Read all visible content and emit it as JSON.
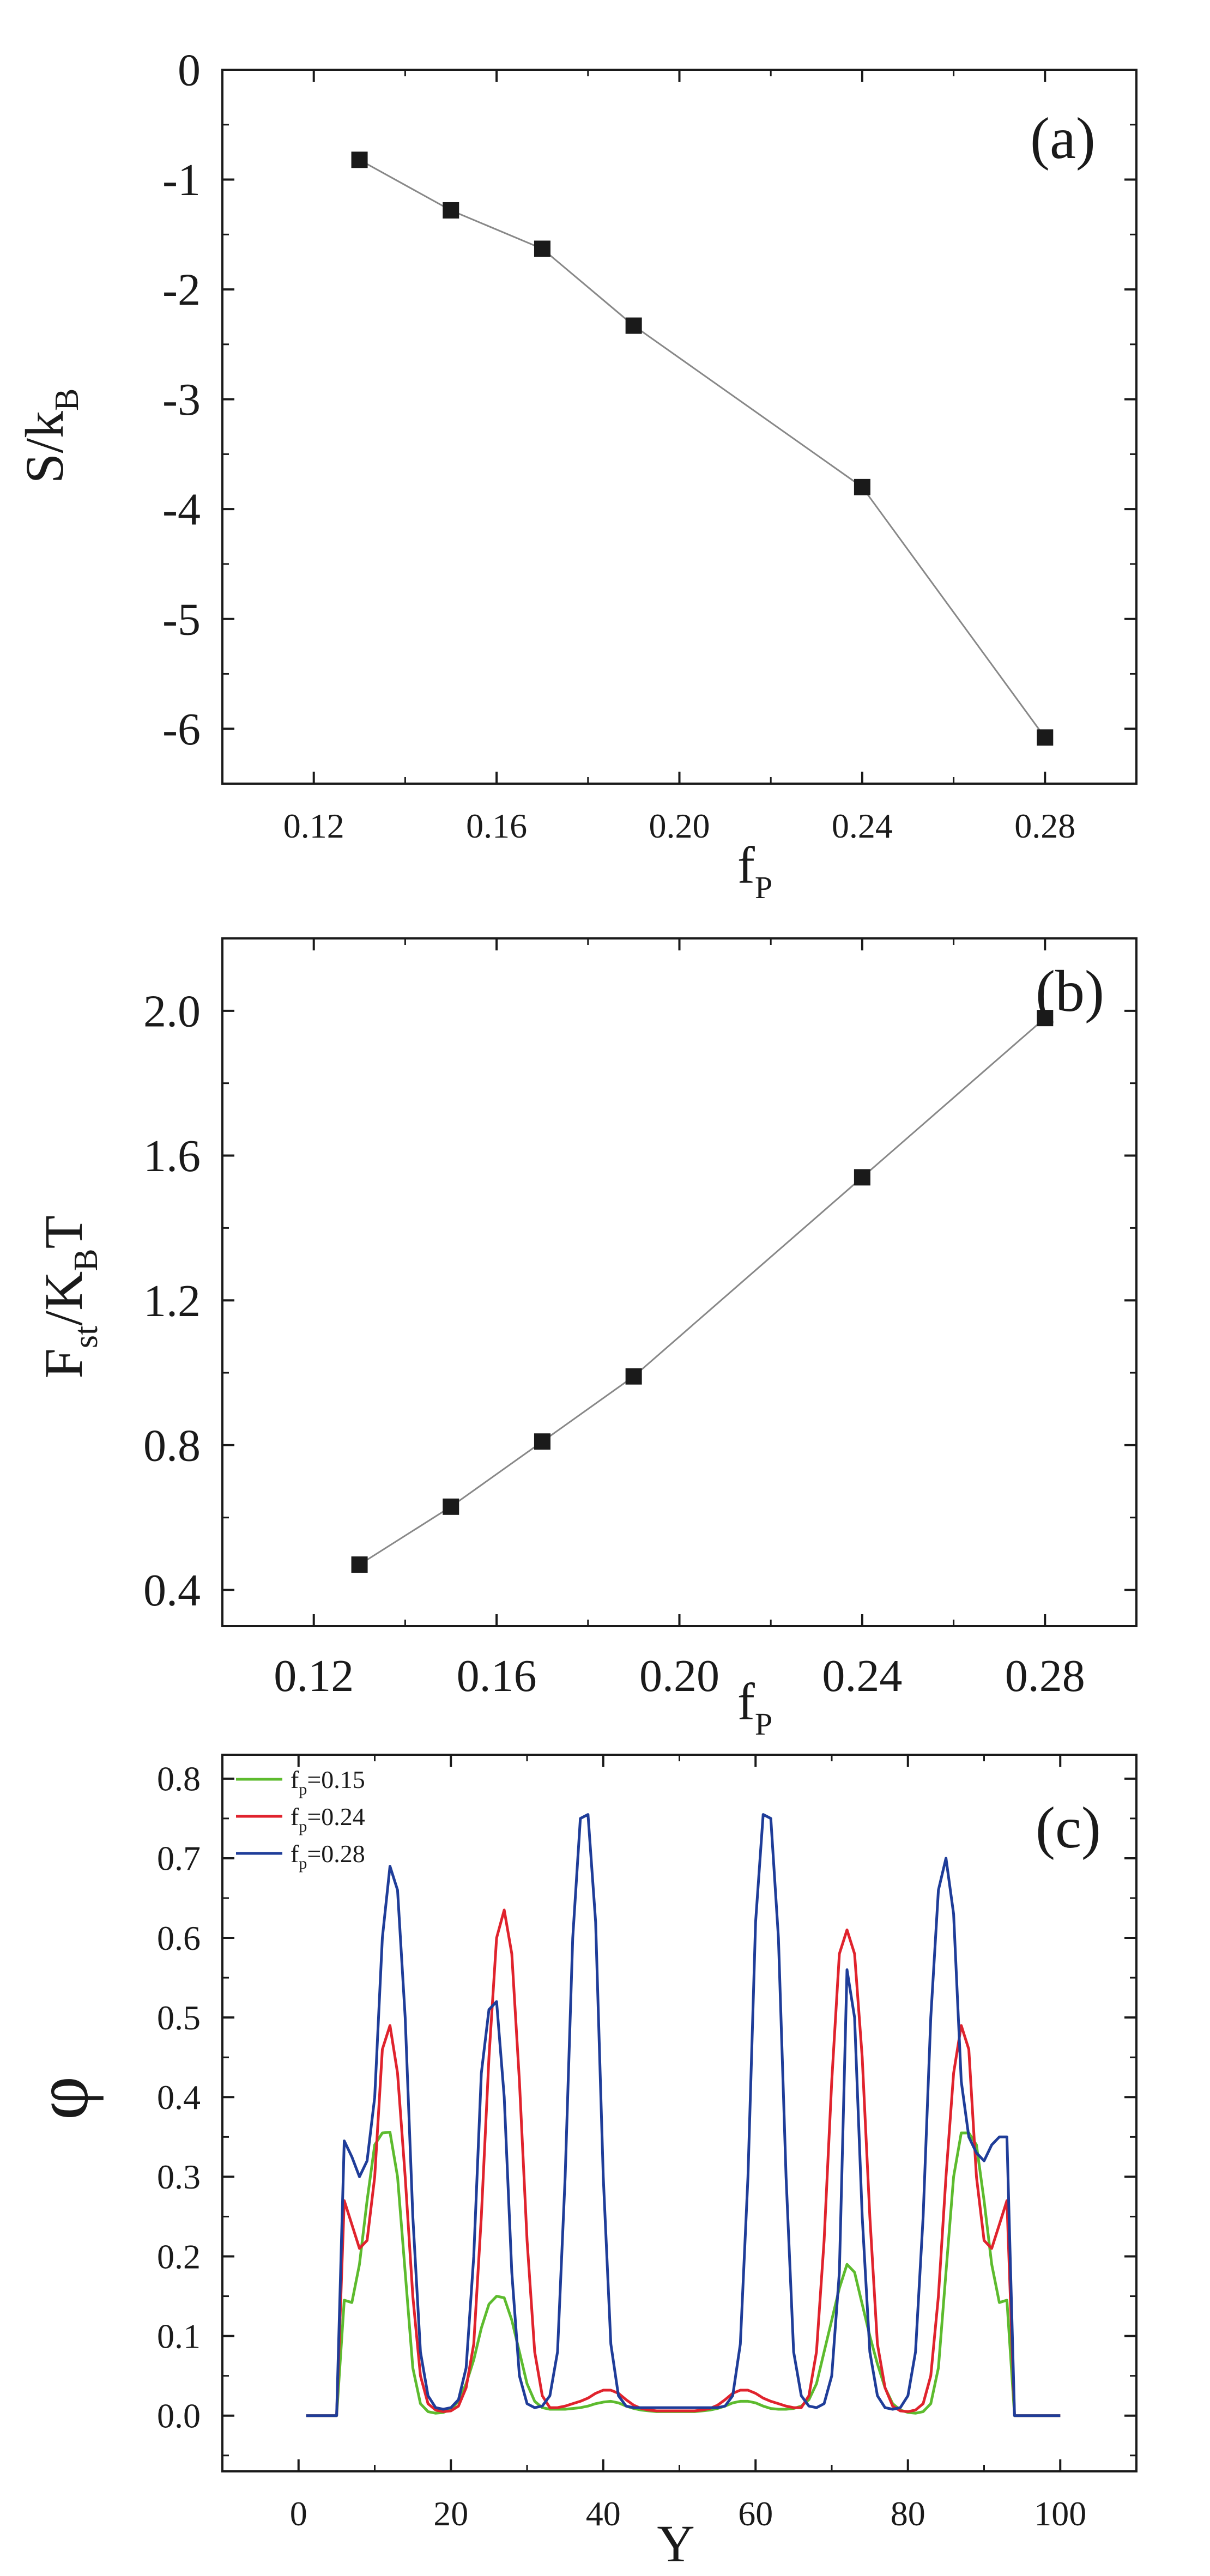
{
  "chart_data": [
    {
      "id": "a",
      "type": "line",
      "panel_label": "(a)",
      "ylabel": {
        "main": "S/k",
        "sub": "B"
      },
      "xlabel": {
        "main": "f",
        "sub": "P"
      },
      "xlim": [
        0.1,
        0.3
      ],
      "ylim": [
        -6.5,
        0
      ],
      "xticks": [
        0.12,
        0.16,
        0.2,
        0.24,
        0.28
      ],
      "xtick_labels": [
        "0.12",
        "0.16",
        "0.20",
        "0.24",
        "0.28"
      ],
      "yticks": [
        0,
        -1,
        -2,
        -3,
        -4,
        -5,
        -6
      ],
      "ytick_labels": [
        "0",
        "-1",
        "-2",
        "-3",
        "-4",
        "-5",
        "-6"
      ],
      "x": [
        0.13,
        0.15,
        0.17,
        0.19,
        0.24,
        0.28
      ],
      "y": [
        -0.82,
        -1.28,
        -1.63,
        -2.33,
        -3.8,
        -6.08
      ],
      "marker": "square",
      "line_color": "#888888"
    },
    {
      "id": "b",
      "type": "line",
      "panel_label": "(b)",
      "ylabel": {
        "main": "F",
        "sub": "st",
        "mid": "/K",
        "sub2": "B",
        "end": "T"
      },
      "xlabel": {
        "main": "f",
        "sub": "P"
      },
      "xlim": [
        0.1,
        0.3
      ],
      "ylim": [
        0.3,
        2.2
      ],
      "xticks": [
        0.12,
        0.16,
        0.2,
        0.24,
        0.28
      ],
      "xtick_labels": [
        "0.12",
        "0.16",
        "0.20",
        "0.24",
        "0.28"
      ],
      "yticks": [
        0.4,
        0.8,
        1.2,
        1.6,
        2.0
      ],
      "ytick_labels": [
        "0.4",
        "0.8",
        "1.2",
        "1.6",
        "2.0"
      ],
      "x": [
        0.13,
        0.15,
        0.17,
        0.19,
        0.24,
        0.28
      ],
      "y": [
        0.47,
        0.63,
        0.81,
        0.99,
        1.54,
        1.98
      ],
      "marker": "square",
      "line_color": "#888888"
    },
    {
      "id": "c",
      "type": "line",
      "panel_label": "(c)",
      "ylabel": {
        "main": "φ"
      },
      "xlabel": {
        "main": "Y"
      },
      "xlim": [
        -10,
        110
      ],
      "ylim": [
        -0.07,
        0.83
      ],
      "xticks": [
        0,
        20,
        40,
        60,
        80,
        100
      ],
      "xtick_labels": [
        "0",
        "20",
        "40",
        "60",
        "80",
        "100"
      ],
      "yticks": [
        0.0,
        0.1,
        0.2,
        0.3,
        0.4,
        0.5,
        0.6,
        0.7,
        0.8
      ],
      "ytick_labels": [
        "0.0",
        "0.1",
        "0.2",
        "0.3",
        "0.4",
        "0.5",
        "0.6",
        "0.7",
        "0.8"
      ],
      "x": [
        1,
        2,
        3,
        4,
        5,
        6,
        7,
        8,
        9,
        10,
        11,
        12,
        13,
        14,
        15,
        16,
        17,
        18,
        19,
        20,
        21,
        22,
        23,
        24,
        25,
        26,
        27,
        28,
        29,
        30,
        31,
        32,
        33,
        34,
        35,
        36,
        37,
        38,
        39,
        40,
        41,
        42,
        43,
        44,
        45,
        46,
        47,
        48,
        49,
        50,
        51,
        52,
        53,
        54,
        55,
        56,
        57,
        58,
        59,
        60,
        61,
        62,
        63,
        64,
        65,
        66,
        67,
        68,
        69,
        70,
        71,
        72,
        73,
        74,
        75,
        76,
        77,
        78,
        79,
        80,
        81,
        82,
        83,
        84,
        85,
        86,
        87,
        88,
        89,
        90,
        91,
        92,
        93,
        94,
        95,
        96,
        97,
        98,
        99,
        100
      ],
      "series": [
        {
          "name": "fp=0.15",
          "legend": {
            "main": "f",
            "sub": "p",
            "rest": "=0.15"
          },
          "color": "#5dbb2e",
          "values": [
            0,
            0,
            0,
            0,
            0,
            0.145,
            0.142,
            0.19,
            0.27,
            0.34,
            0.355,
            0.356,
            0.3,
            0.18,
            0.06,
            0.015,
            0.005,
            0.003,
            0.004,
            0.008,
            0.018,
            0.04,
            0.07,
            0.11,
            0.14,
            0.15,
            0.148,
            0.12,
            0.08,
            0.04,
            0.018,
            0.01,
            0.008,
            0.008,
            0.008,
            0.009,
            0.01,
            0.012,
            0.015,
            0.017,
            0.018,
            0.016,
            0.012,
            0.009,
            0.007,
            0.006,
            0.005,
            0.005,
            0.005,
            0.005,
            0.005,
            0.005,
            0.006,
            0.007,
            0.009,
            0.012,
            0.016,
            0.018,
            0.018,
            0.016,
            0.012,
            0.009,
            0.008,
            0.008,
            0.009,
            0.012,
            0.02,
            0.04,
            0.08,
            0.12,
            0.16,
            0.19,
            0.18,
            0.14,
            0.1,
            0.065,
            0.035,
            0.015,
            0.007,
            0.004,
            0.003,
            0.005,
            0.015,
            0.06,
            0.18,
            0.3,
            0.355,
            0.355,
            0.34,
            0.27,
            0.19,
            0.142,
            0.145,
            0,
            0,
            0,
            0,
            0,
            0,
            0
          ]
        },
        {
          "name": "fp=0.24",
          "legend": {
            "main": "f",
            "sub": "p",
            "rest": "=0.24"
          },
          "color": "#e0232d",
          "values": [
            0,
            0,
            0,
            0,
            0,
            0.27,
            0.24,
            0.21,
            0.22,
            0.3,
            0.46,
            0.49,
            0.43,
            0.3,
            0.15,
            0.05,
            0.015,
            0.007,
            0.005,
            0.006,
            0.012,
            0.035,
            0.09,
            0.25,
            0.45,
            0.6,
            0.635,
            0.58,
            0.42,
            0.22,
            0.08,
            0.025,
            0.01,
            0.01,
            0.012,
            0.015,
            0.018,
            0.022,
            0.028,
            0.032,
            0.032,
            0.028,
            0.02,
            0.013,
            0.009,
            0.007,
            0.006,
            0.006,
            0.006,
            0.006,
            0.006,
            0.006,
            0.007,
            0.009,
            0.013,
            0.02,
            0.028,
            0.032,
            0.032,
            0.028,
            0.022,
            0.018,
            0.015,
            0.012,
            0.01,
            0.01,
            0.025,
            0.08,
            0.22,
            0.42,
            0.58,
            0.61,
            0.58,
            0.45,
            0.25,
            0.09,
            0.035,
            0.012,
            0.006,
            0.005,
            0.007,
            0.015,
            0.05,
            0.15,
            0.3,
            0.43,
            0.49,
            0.46,
            0.3,
            0.22,
            0.21,
            0.24,
            0.27,
            0,
            0,
            0,
            0,
            0,
            0,
            0
          ]
        },
        {
          "name": "fp=0.28",
          "legend": {
            "main": "f",
            "sub": "p",
            "rest": "=0.28"
          },
          "color": "#1f3d99",
          "values": [
            0,
            0,
            0,
            0,
            0,
            0.345,
            0.325,
            0.3,
            0.32,
            0.4,
            0.6,
            0.69,
            0.66,
            0.5,
            0.25,
            0.08,
            0.025,
            0.01,
            0.008,
            0.01,
            0.02,
            0.06,
            0.2,
            0.43,
            0.51,
            0.52,
            0.4,
            0.18,
            0.05,
            0.015,
            0.01,
            0.012,
            0.025,
            0.08,
            0.3,
            0.6,
            0.75,
            0.755,
            0.62,
            0.3,
            0.09,
            0.025,
            0.012,
            0.01,
            0.01,
            0.01,
            0.01,
            0.01,
            0.01,
            0.01,
            0.01,
            0.01,
            0.01,
            0.01,
            0.01,
            0.012,
            0.025,
            0.09,
            0.3,
            0.62,
            0.755,
            0.75,
            0.6,
            0.3,
            0.08,
            0.025,
            0.012,
            0.01,
            0.015,
            0.05,
            0.18,
            0.56,
            0.5,
            0.25,
            0.08,
            0.025,
            0.01,
            0.008,
            0.01,
            0.025,
            0.08,
            0.25,
            0.5,
            0.66,
            0.7,
            0.63,
            0.42,
            0.35,
            0.33,
            0.32,
            0.34,
            0.35,
            0.35,
            0,
            0,
            0,
            0,
            0,
            0,
            0
          ]
        }
      ]
    }
  ]
}
